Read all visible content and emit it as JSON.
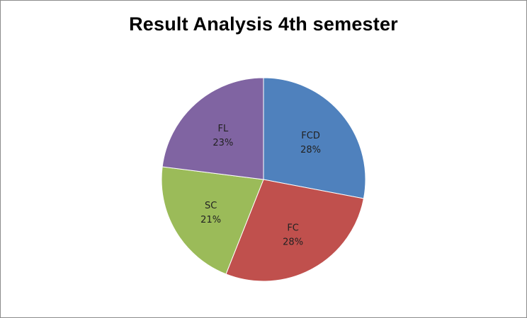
{
  "chart_data": {
    "type": "pie",
    "title": "Result Analysis 4th semester",
    "labels": [
      "FCD",
      "FC",
      "SC",
      "FL"
    ],
    "values": [
      28,
      28,
      21,
      23
    ],
    "value_labels": [
      "28%",
      "28%",
      "21%",
      "23%"
    ],
    "colors": [
      "#4f81bd",
      "#c0504d",
      "#9bbb59",
      "#8064a2"
    ],
    "start_angle": "12 o'clock, clockwise",
    "legend": "none (labels on slices)"
  }
}
